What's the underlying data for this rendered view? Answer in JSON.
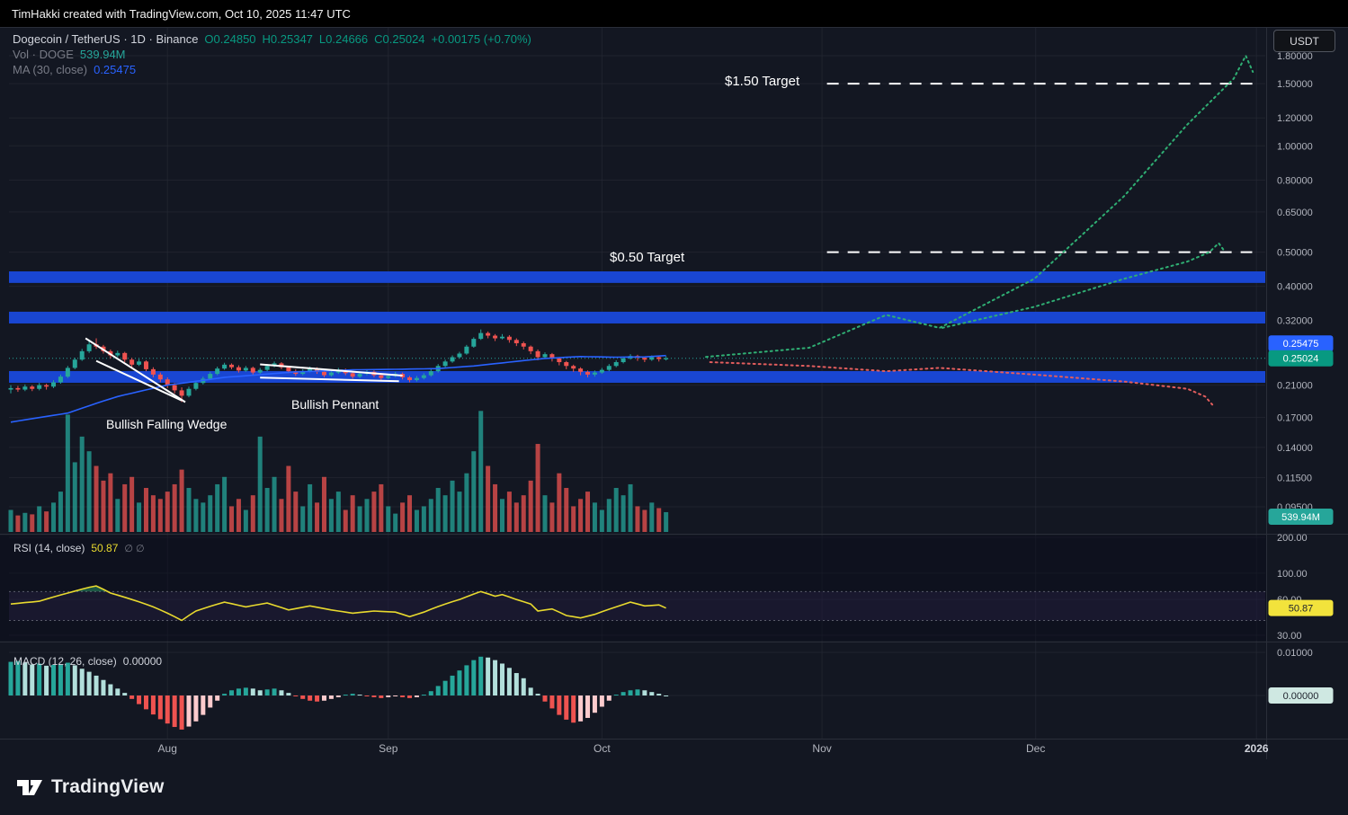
{
  "top_bar": {
    "text": "TimHakki created with TradingView.com, Oct 10, 2025 11:47 UTC"
  },
  "header": {
    "title": "Dogecoin / TetherUS · 1D · Binance",
    "o": "O0.24850",
    "h": "H0.25347",
    "l": "L0.24666",
    "c": "C0.25024",
    "change": "+0.00175 (+0.70%)",
    "vol_label": "Vol · DOGE",
    "vol_value": "539.94M",
    "ma_label": "MA (30, close)",
    "ma_value": "0.25475"
  },
  "currency_button": "USDT",
  "panes": {
    "rsi_label": "RSI (14, close)",
    "rsi_value": "50.87",
    "rsi_extra": "∅ ∅",
    "macd_label": "MACD (12, 26, close)",
    "macd_value": "0.00000"
  },
  "footer": {
    "brand": "TradingView"
  },
  "colors": {
    "grid": "rgba(42,46,57,0.55)",
    "separator": "#2a2e39",
    "axis_text": "#b2b5be",
    "up": "#26a69a",
    "down": "#ef5350",
    "vol_up": "rgba(38,166,154,0.75)",
    "vol_down": "rgba(239,83,80,0.75)",
    "ma": "#2962ff",
    "rsi": "#e8d92e",
    "band_blue": "#1946d2",
    "proj_green": "#2fae73",
    "proj_red": "#e25d5d",
    "macd_up": "#26a69a",
    "macd_up_light": "#b2dfdb",
    "macd_down": "#ef5350",
    "macd_down_light": "#fccbcd",
    "badge_ma": "#2962ff",
    "badge_price": "#089981",
    "badge_vol": "#26a69a",
    "badge_rsi": "#f2e33c",
    "badge_macd": "#cfe8e2",
    "target_line": "#ffffff"
  },
  "axis": {
    "months": [
      {
        "label": "Aug",
        "idx": 22
      },
      {
        "label": "Sep",
        "idx": 53
      },
      {
        "label": "Oct",
        "idx": 83
      },
      {
        "label": "Nov",
        "idx": 113.9
      },
      {
        "label": "Dec",
        "idx": 143.9
      },
      {
        "label": "2026",
        "idx": 174.9
      }
    ],
    "rsi_ticks": [
      200,
      100,
      60,
      30
    ],
    "macd_tick_label": "0.01000",
    "badges": [
      {
        "text": "0.25475",
        "bg": "#2962ff",
        "fg": "#ffffff",
        "type": "price",
        "value": 0.25475
      },
      {
        "text": "0.25024",
        "bg": "#089981",
        "fg": "#ffffff",
        "type": "price",
        "value": 0.25024
      },
      {
        "text": "539.94M",
        "bg": "#26a69a",
        "fg": "#ffffff",
        "type": "vol",
        "value": 0
      },
      {
        "text": "50.87",
        "bg": "#f2e33c",
        "fg": "#1e222d",
        "type": "rsi",
        "value": 50.87
      },
      {
        "text": "0.00000",
        "bg": "#cfe8e2",
        "fg": "#1e222d",
        "type": "macd",
        "value": 0
      }
    ]
  },
  "chart_data": {
    "type": "candlestick",
    "symbol": "Dogecoin / TetherUS",
    "interval": "1D",
    "exchange": "Binance",
    "ohlc": {
      "open": 0.2485,
      "high": 0.25347,
      "low": 0.24666,
      "close": 0.25024,
      "change": 0.00175,
      "change_pct": 0.7
    },
    "volume_display": "539.94M",
    "current_price": 0.25024,
    "price_axis": {
      "scale": "log",
      "ticks": [
        1.8,
        1.5,
        1.2,
        1.0,
        0.8,
        0.65,
        0.5,
        0.4,
        0.32,
        0.21,
        0.17,
        0.14,
        0.115,
        0.095
      ]
    },
    "patterns": {
      "wedge": "Bullish Falling Wedge",
      "pennant": "Bullish Pennant"
    },
    "targets": [
      {
        "label": "$1.50 Target",
        "price": 1.5,
        "x_idx": [
          114.6,
          175
        ]
      },
      {
        "label": "$0.50 Target",
        "price": 0.5,
        "x_idx": [
          114.6,
          174.3
        ]
      }
    ],
    "support_bands": [
      [
        0.409,
        0.441
      ],
      [
        0.314,
        0.339
      ],
      [
        0.2133,
        0.2302
      ]
    ],
    "trendlines": {
      "wedge_upper": [
        [
          10.5,
          0.285
        ],
        [
          24.5,
          0.188
        ]
      ],
      "wedge_lower": [
        [
          12,
          0.246
        ],
        [
          24,
          0.19
        ]
      ],
      "pennant_upper": [
        [
          35,
          0.2405
        ],
        [
          55,
          0.2235
        ]
      ],
      "pennant_lower": [
        [
          35,
          0.2205
        ],
        [
          54.5,
          0.2155
        ]
      ]
    },
    "projections": {
      "green_main": [
        [
          97.6,
          0.2525
        ],
        [
          112.1,
          0.268
        ],
        [
          122.9,
          0.332
        ],
        [
          130.4,
          0.305
        ],
        [
          143.7,
          0.42
        ],
        [
          156.3,
          0.72
        ],
        [
          165.2,
          1.15
        ],
        [
          171.7,
          1.55
        ],
        [
          173.4,
          1.8
        ],
        [
          174.4,
          1.62
        ]
      ],
      "green_alt": [
        [
          130.8,
          0.305
        ],
        [
          143.7,
          0.35
        ],
        [
          156.3,
          0.42
        ],
        [
          165.2,
          0.47
        ],
        [
          168.3,
          0.5
        ],
        [
          169.6,
          0.53
        ],
        [
          170.5,
          0.5
        ]
      ],
      "red": [
        [
          98.2,
          0.244
        ],
        [
          112.1,
          0.238
        ],
        [
          122.9,
          0.23
        ],
        [
          130.4,
          0.235
        ],
        [
          143.7,
          0.225
        ],
        [
          156.3,
          0.215
        ],
        [
          165.2,
          0.205
        ],
        [
          167.7,
          0.195
        ],
        [
          168.7,
          0.185
        ]
      ]
    },
    "candles": [
      [
        0.204,
        0.21,
        0.199,
        0.206
      ],
      [
        0.206,
        0.209,
        0.201,
        0.204
      ],
      [
        0.204,
        0.211,
        0.202,
        0.208
      ],
      [
        0.208,
        0.21,
        0.202,
        0.205
      ],
      [
        0.205,
        0.213,
        0.203,
        0.21
      ],
      [
        0.21,
        0.212,
        0.204,
        0.208
      ],
      [
        0.208,
        0.217,
        0.206,
        0.214
      ],
      [
        0.214,
        0.225,
        0.212,
        0.222
      ],
      [
        0.222,
        0.238,
        0.22,
        0.235
      ],
      [
        0.235,
        0.251,
        0.233,
        0.248
      ],
      [
        0.248,
        0.266,
        0.246,
        0.262
      ],
      [
        0.262,
        0.28,
        0.259,
        0.274
      ],
      [
        0.274,
        0.285,
        0.266,
        0.27
      ],
      [
        0.27,
        0.273,
        0.258,
        0.262
      ],
      [
        0.262,
        0.265,
        0.25,
        0.255
      ],
      [
        0.255,
        0.263,
        0.252,
        0.259
      ],
      [
        0.259,
        0.261,
        0.244,
        0.248
      ],
      [
        0.248,
        0.251,
        0.236,
        0.24
      ],
      [
        0.24,
        0.249,
        0.238,
        0.245
      ],
      [
        0.245,
        0.247,
        0.23,
        0.233
      ],
      [
        0.233,
        0.236,
        0.221,
        0.225
      ],
      [
        0.225,
        0.228,
        0.214,
        0.218
      ],
      [
        0.218,
        0.221,
        0.206,
        0.21
      ],
      [
        0.21,
        0.213,
        0.199,
        0.203
      ],
      [
        0.203,
        0.207,
        0.188,
        0.196
      ],
      [
        0.196,
        0.208,
        0.194,
        0.205
      ],
      [
        0.205,
        0.216,
        0.203,
        0.213
      ],
      [
        0.213,
        0.222,
        0.211,
        0.219
      ],
      [
        0.219,
        0.229,
        0.217,
        0.226
      ],
      [
        0.226,
        0.237,
        0.224,
        0.234
      ],
      [
        0.234,
        0.243,
        0.232,
        0.24
      ],
      [
        0.24,
        0.242,
        0.233,
        0.236
      ],
      [
        0.236,
        0.239,
        0.228,
        0.231
      ],
      [
        0.231,
        0.238,
        0.229,
        0.235
      ],
      [
        0.235,
        0.237,
        0.225,
        0.228
      ],
      [
        0.228,
        0.235,
        0.226,
        0.232
      ],
      [
        0.232,
        0.241,
        0.23,
        0.238
      ],
      [
        0.238,
        0.245,
        0.236,
        0.242
      ],
      [
        0.242,
        0.244,
        0.233,
        0.236
      ],
      [
        0.236,
        0.238,
        0.227,
        0.23
      ],
      [
        0.23,
        0.233,
        0.223,
        0.226
      ],
      [
        0.226,
        0.233,
        0.224,
        0.23
      ],
      [
        0.23,
        0.237,
        0.228,
        0.234
      ],
      [
        0.234,
        0.236,
        0.226,
        0.229
      ],
      [
        0.229,
        0.231,
        0.221,
        0.224
      ],
      [
        0.224,
        0.231,
        0.222,
        0.228
      ],
      [
        0.228,
        0.235,
        0.226,
        0.232
      ],
      [
        0.232,
        0.234,
        0.224,
        0.227
      ],
      [
        0.227,
        0.229,
        0.219,
        0.222
      ],
      [
        0.222,
        0.229,
        0.22,
        0.226
      ],
      [
        0.226,
        0.232,
        0.224,
        0.229
      ],
      [
        0.229,
        0.231,
        0.221,
        0.224
      ],
      [
        0.224,
        0.226,
        0.217,
        0.22
      ],
      [
        0.22,
        0.226,
        0.218,
        0.223
      ],
      [
        0.223,
        0.229,
        0.221,
        0.226
      ],
      [
        0.226,
        0.228,
        0.218,
        0.221
      ],
      [
        0.221,
        0.223,
        0.214,
        0.217
      ],
      [
        0.217,
        0.223,
        0.215,
        0.22
      ],
      [
        0.22,
        0.227,
        0.218,
        0.224
      ],
      [
        0.224,
        0.233,
        0.222,
        0.23
      ],
      [
        0.23,
        0.241,
        0.228,
        0.238
      ],
      [
        0.238,
        0.248,
        0.236,
        0.245
      ],
      [
        0.245,
        0.255,
        0.243,
        0.252
      ],
      [
        0.252,
        0.261,
        0.25,
        0.258
      ],
      [
        0.258,
        0.273,
        0.256,
        0.27
      ],
      [
        0.27,
        0.287,
        0.268,
        0.284
      ],
      [
        0.284,
        0.302,
        0.282,
        0.295
      ],
      [
        0.295,
        0.298,
        0.285,
        0.29
      ],
      [
        0.29,
        0.293,
        0.28,
        0.285
      ],
      [
        0.285,
        0.293,
        0.283,
        0.288
      ],
      [
        0.288,
        0.291,
        0.277,
        0.282
      ],
      [
        0.282,
        0.285,
        0.271,
        0.276
      ],
      [
        0.276,
        0.279,
        0.265,
        0.27
      ],
      [
        0.27,
        0.272,
        0.257,
        0.262
      ],
      [
        0.262,
        0.265,
        0.247,
        0.252
      ],
      [
        0.252,
        0.26,
        0.25,
        0.257
      ],
      [
        0.257,
        0.259,
        0.245,
        0.25
      ],
      [
        0.25,
        0.252,
        0.239,
        0.244
      ],
      [
        0.244,
        0.246,
        0.233,
        0.238
      ],
      [
        0.238,
        0.24,
        0.229,
        0.234
      ],
      [
        0.234,
        0.236,
        0.224,
        0.229
      ],
      [
        0.229,
        0.231,
        0.221,
        0.225
      ],
      [
        0.225,
        0.231,
        0.222,
        0.228
      ],
      [
        0.228,
        0.235,
        0.226,
        0.232
      ],
      [
        0.232,
        0.241,
        0.23,
        0.238
      ],
      [
        0.238,
        0.247,
        0.236,
        0.244
      ],
      [
        0.244,
        0.253,
        0.242,
        0.25
      ],
      [
        0.25,
        0.257,
        0.248,
        0.254
      ],
      [
        0.254,
        0.256,
        0.246,
        0.251
      ],
      [
        0.251,
        0.253,
        0.244,
        0.248
      ],
      [
        0.248,
        0.255,
        0.246,
        0.252
      ],
      [
        0.252,
        0.254,
        0.245,
        0.249
      ],
      [
        0.2485,
        0.25347,
        0.24666,
        0.25024
      ]
    ],
    "volume_m": [
      600,
      450,
      520,
      480,
      700,
      560,
      800,
      1100,
      3200,
      1900,
      2600,
      2200,
      1800,
      1400,
      1600,
      900,
      1300,
      1500,
      800,
      1200,
      1000,
      900,
      1100,
      1300,
      1700,
      1200,
      900,
      800,
      1000,
      1300,
      1500,
      700,
      900,
      600,
      1000,
      2600,
      1200,
      1500,
      900,
      1800,
      1100,
      700,
      1300,
      800,
      1500,
      900,
      1100,
      600,
      1000,
      700,
      900,
      1100,
      1300,
      700,
      500,
      800,
      1000,
      600,
      700,
      900,
      1200,
      1000,
      1400,
      1100,
      1600,
      2200,
      3300,
      1800,
      1300,
      900,
      1100,
      800,
      1000,
      1400,
      2400,
      1000,
      800,
      1600,
      1200,
      700,
      900,
      1100,
      800,
      600,
      900,
      1200,
      1000,
      1300,
      700,
      600,
      800,
      650,
      540
    ],
    "ma30": {
      "period": 30,
      "last": 0.25475,
      "points": [
        [
          0,
          0.165
        ],
        [
          8,
          0.175
        ],
        [
          15,
          0.195
        ],
        [
          22,
          0.21
        ],
        [
          28,
          0.218
        ],
        [
          30,
          0.221
        ],
        [
          34,
          0.224
        ],
        [
          40,
          0.229
        ],
        [
          48,
          0.232
        ],
        [
          55,
          0.233
        ],
        [
          60,
          0.234
        ],
        [
          65,
          0.238
        ],
        [
          70,
          0.244
        ],
        [
          75,
          0.25
        ],
        [
          80,
          0.253
        ],
        [
          85,
          0.252
        ],
        [
          89,
          0.2525
        ],
        [
          92,
          0.25475
        ]
      ]
    },
    "rsi": {
      "period": 14,
      "last": 50.87,
      "bands": [
        70,
        40
      ],
      "points": [
        [
          0,
          55
        ],
        [
          4,
          58
        ],
        [
          8,
          68
        ],
        [
          11,
          76
        ],
        [
          12,
          78
        ],
        [
          14,
          68
        ],
        [
          17,
          60
        ],
        [
          20,
          52
        ],
        [
          24,
          40
        ],
        [
          26,
          48
        ],
        [
          30,
          57
        ],
        [
          33,
          52
        ],
        [
          36,
          56
        ],
        [
          39,
          49
        ],
        [
          42,
          53
        ],
        [
          45,
          49
        ],
        [
          48,
          46
        ],
        [
          51,
          48
        ],
        [
          54,
          47
        ],
        [
          56,
          43
        ],
        [
          58,
          47
        ],
        [
          61,
          55
        ],
        [
          63,
          60
        ],
        [
          66,
          70
        ],
        [
          68,
          64
        ],
        [
          69,
          66
        ],
        [
          71,
          60
        ],
        [
          73,
          55
        ],
        [
          74,
          48
        ],
        [
          76,
          50
        ],
        [
          78,
          44
        ],
        [
          80,
          42
        ],
        [
          82,
          45
        ],
        [
          85,
          52
        ],
        [
          87,
          57
        ],
        [
          89,
          53
        ],
        [
          91,
          54
        ],
        [
          92,
          50.87
        ]
      ]
    },
    "macd": {
      "fast": 12,
      "slow": 26,
      "last": 0.0,
      "values": [
        0.0078,
        0.008,
        0.0076,
        0.0072,
        0.0074,
        0.0069,
        0.0071,
        0.0073,
        0.0076,
        0.007,
        0.0062,
        0.0055,
        0.0046,
        0.0036,
        0.0026,
        0.0016,
        0.0006,
        -0.0008,
        -0.002,
        -0.0032,
        -0.0044,
        -0.0055,
        -0.0065,
        -0.0073,
        -0.0079,
        -0.0072,
        -0.006,
        -0.0045,
        -0.0028,
        -0.0012,
        0.0004,
        0.0012,
        0.0016,
        0.0018,
        0.0016,
        0.0012,
        0.0014,
        0.0016,
        0.0012,
        0.0006,
        -0.0002,
        -0.0008,
        -0.0012,
        -0.0014,
        -0.0012,
        -0.0008,
        -0.0004,
        0.0002,
        0.0004,
        0.0002,
        -0.0002,
        -0.0004,
        -0.0006,
        -0.0004,
        -0.0002,
        -0.0004,
        -0.0006,
        -0.0004,
        0.0002,
        0.001,
        0.0022,
        0.0034,
        0.0046,
        0.0058,
        0.007,
        0.0082,
        0.009,
        0.0088,
        0.0082,
        0.0074,
        0.0064,
        0.0052,
        0.004,
        0.0018,
        0.0004,
        -0.0014,
        -0.003,
        -0.0045,
        -0.0056,
        -0.0063,
        -0.006,
        -0.0052,
        -0.004,
        -0.0026,
        -0.0012,
        0.0002,
        0.0008,
        0.0012,
        0.0014,
        0.0012,
        0.0008,
        0.0004,
        0.0
      ]
    }
  }
}
